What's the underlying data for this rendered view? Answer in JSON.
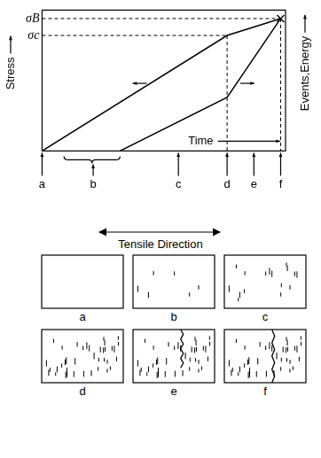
{
  "chart_data": {
    "type": "line",
    "x_label": "Time",
    "y_label": "Stress",
    "y2_label": "Events,Energy",
    "xlim": [
      0,
      100
    ],
    "xticks": [
      {
        "value": 0,
        "label": "a"
      },
      {
        "value": 21,
        "label": "b"
      },
      {
        "value": 56,
        "label": "c"
      },
      {
        "value": 76,
        "label": "d"
      },
      {
        "value": 87,
        "label": "e"
      },
      {
        "value": 98,
        "label": "f"
      }
    ],
    "ylim": [
      0,
      100
    ],
    "yticks": [
      {
        "value": 82,
        "label": "σc"
      },
      {
        "value": 94,
        "label": "σB"
      }
    ],
    "y2lim": [
      0,
      100
    ],
    "brace": [
      9,
      32
    ],
    "guides": [
      {
        "x": 76,
        "y": 82
      },
      {
        "x": 98,
        "y": 94
      }
    ],
    "grid": false,
    "series": [
      {
        "name": "Stress",
        "color": "#000000",
        "marker": "x",
        "x": [
          0,
          76,
          98
        ],
        "values": [
          0,
          82,
          94
        ]
      },
      {
        "name": "Events,Energy",
        "color": "#000000",
        "axis": "y2",
        "x": [
          32,
          76,
          98
        ],
        "values": [
          0,
          38,
          94
        ]
      }
    ]
  },
  "diagram": {
    "title": "Tensile Direction",
    "panels": [
      "a",
      "b",
      "c",
      "d",
      "e",
      "f"
    ]
  }
}
